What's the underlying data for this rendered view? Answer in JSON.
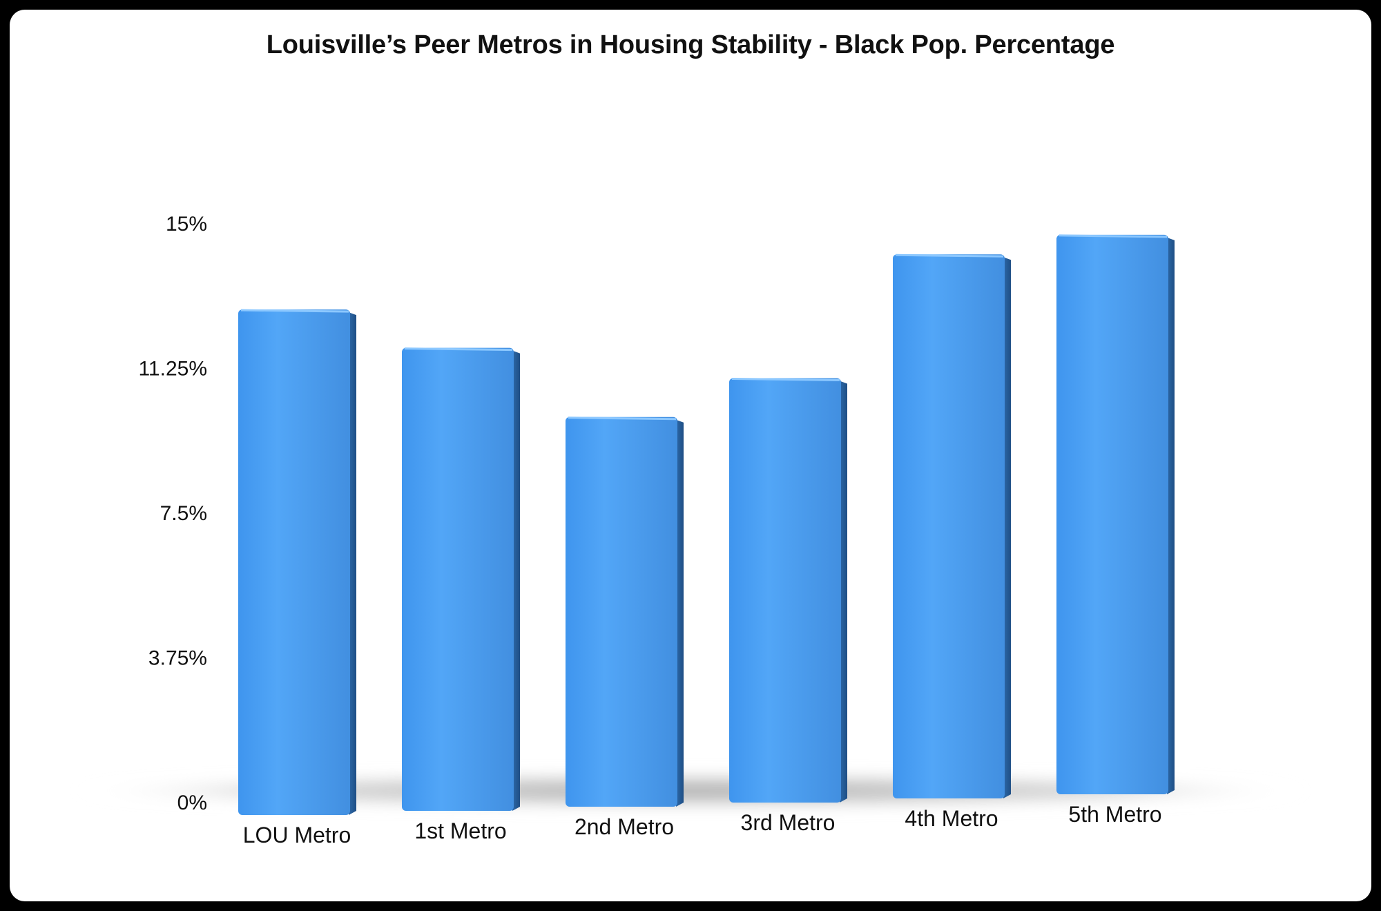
{
  "chart_data": {
    "type": "bar",
    "title": "Louisville’s Peer Metros in Housing Stability - Black Pop. Percentage",
    "categories": [
      "LOU Metro",
      "1st Metro",
      "2nd Metro",
      "3rd Metro",
      "4th Metro",
      "5th Metro"
    ],
    "values": [
      13.1,
      12.0,
      10.1,
      11.0,
      14.1,
      14.5
    ],
    "y_ticks": [
      "0%",
      "3.75%",
      "7.5%",
      "11.25%",
      "15%"
    ],
    "y_tick_values": [
      0,
      3.75,
      7.5,
      11.25,
      15
    ],
    "ylim": [
      0,
      15
    ],
    "xlabel": "",
    "ylabel": "",
    "grid": false,
    "legend": "none",
    "colors": {
      "bar": "#4a9ff2",
      "bar_side": "#2f6fb0",
      "bar_top": "#6cb6ff",
      "shadow": "#b9b9b9"
    }
  }
}
